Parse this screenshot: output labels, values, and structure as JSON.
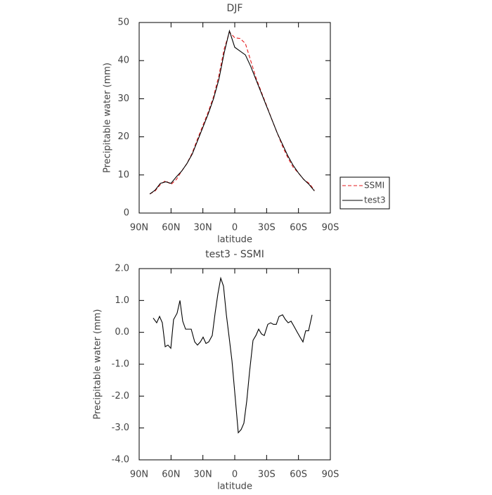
{
  "chart_data": [
    {
      "type": "line",
      "title": "DJF",
      "xlabel": "latitude",
      "ylabel": "Precipitable water (mm)",
      "xlim": [
        90,
        -90
      ],
      "xticks": [
        {
          "value": 90,
          "label": "90N"
        },
        {
          "value": 60,
          "label": "60N"
        },
        {
          "value": 30,
          "label": "30N"
        },
        0,
        {
          "value": -30,
          "label": "30S"
        },
        {
          "value": -60,
          "label": "60S"
        },
        {
          "value": -90,
          "label": "90S"
        }
      ],
      "ylim": [
        0,
        50
      ],
      "yticks": [
        0,
        10,
        20,
        30,
        40,
        50
      ],
      "legend": "right",
      "x": [
        80,
        75,
        70,
        65,
        60,
        55,
        50,
        45,
        40,
        35,
        30,
        25,
        20,
        15,
        10,
        5,
        0,
        -5,
        -10,
        -15,
        -20,
        -25,
        -30,
        -35,
        -40,
        -45,
        -50,
        -55,
        -60,
        -65,
        -70,
        -75
      ],
      "series": [
        {
          "name": "SSMI",
          "color": "#e41a1c",
          "linestyle": "dashed",
          "values": [
            5,
            5.8,
            7.5,
            8.5,
            7.5,
            8.8,
            11,
            13,
            15.8,
            19.5,
            23,
            26.5,
            30.5,
            36,
            43,
            47.5,
            46,
            45.8,
            44.5,
            40,
            35.5,
            31.8,
            28.2,
            24.5,
            21,
            17.5,
            14.5,
            12,
            10.5,
            8.8,
            7.8,
            6
          ]
        },
        {
          "name": "test3",
          "color": "#000000",
          "linestyle": "solid",
          "values": [
            5,
            6,
            7.8,
            8.2,
            7.8,
            9.5,
            11,
            13,
            15.5,
            19,
            22.5,
            26,
            30,
            35,
            42,
            47.8,
            43.5,
            42.5,
            41.5,
            38.5,
            35,
            31.5,
            28,
            24.5,
            21,
            18,
            15,
            12.5,
            10.5,
            8.8,
            7.5,
            5.8
          ]
        }
      ]
    },
    {
      "type": "line",
      "title": "test3 - SSMI",
      "xlabel": "latitude",
      "ylabel": "Precipitable water (mm)",
      "xlim": [
        90,
        -90
      ],
      "xticks": [
        {
          "value": 90,
          "label": "90N"
        },
        {
          "value": 60,
          "label": "60N"
        },
        {
          "value": 30,
          "label": "30N"
        },
        0,
        {
          "value": -30,
          "label": "30S"
        },
        {
          "value": -60,
          "label": "60S"
        },
        {
          "value": -90,
          "label": "90S"
        }
      ],
      "ylim": [
        -4,
        2
      ],
      "yticks": [
        {
          "value": 2,
          "label": "2.0"
        },
        {
          "value": 1,
          "label": "1.0"
        },
        {
          "value": 0,
          "label": "0.0"
        },
        {
          "value": -1,
          "label": "-1.0"
        },
        {
          "value": -2,
          "label": "-2.0"
        },
        {
          "value": -3,
          "label": "-3.0"
        },
        {
          "value": -4,
          "label": "-4.0"
        }
      ],
      "x": [
        76.8,
        73.5,
        70.8,
        68.2,
        65.5,
        62.9,
        60.2,
        57.6,
        54.3,
        51.6,
        49.0,
        46.3,
        43.7,
        41.0,
        37.7,
        35.1,
        32.4,
        29.8,
        27.1,
        24.5,
        21.2,
        18.5,
        15.9,
        13.2,
        10.6,
        7.9,
        5.3,
        2.6,
        -0.7,
        -3.3,
        -6.0,
        -8.6,
        -11.3,
        -13.9,
        -17.2,
        -19.9,
        -22.5,
        -25.2,
        -27.8,
        -31.1,
        -33.8,
        -36.4,
        -39.1,
        -41.7,
        -45.0,
        -47.7,
        -50.3,
        -53.0,
        -55.6,
        -58.9,
        -61.5,
        -64.2,
        -66.8,
        -69.5,
        -72.8
      ],
      "series": [
        {
          "color": "#000000",
          "linestyle": "solid",
          "values": [
            0.45,
            0.3,
            0.5,
            0.3,
            -0.45,
            -0.4,
            -0.5,
            0.4,
            0.6,
            1.0,
            0.35,
            0.1,
            0.1,
            0.1,
            -0.3,
            -0.4,
            -0.3,
            -0.15,
            -0.35,
            -0.3,
            -0.1,
            0.6,
            1.2,
            1.7,
            1.45,
            0.55,
            -0.15,
            -0.9,
            -2.15,
            -3.15,
            -3.05,
            -2.85,
            -2.15,
            -1.25,
            -0.25,
            -0.1,
            0.1,
            -0.05,
            -0.1,
            0.25,
            0.3,
            0.25,
            0.25,
            0.5,
            0.55,
            0.4,
            0.3,
            0.35,
            0.2,
            0.0,
            -0.15,
            -0.3,
            0.05,
            0.05,
            0.55
          ]
        }
      ]
    }
  ]
}
